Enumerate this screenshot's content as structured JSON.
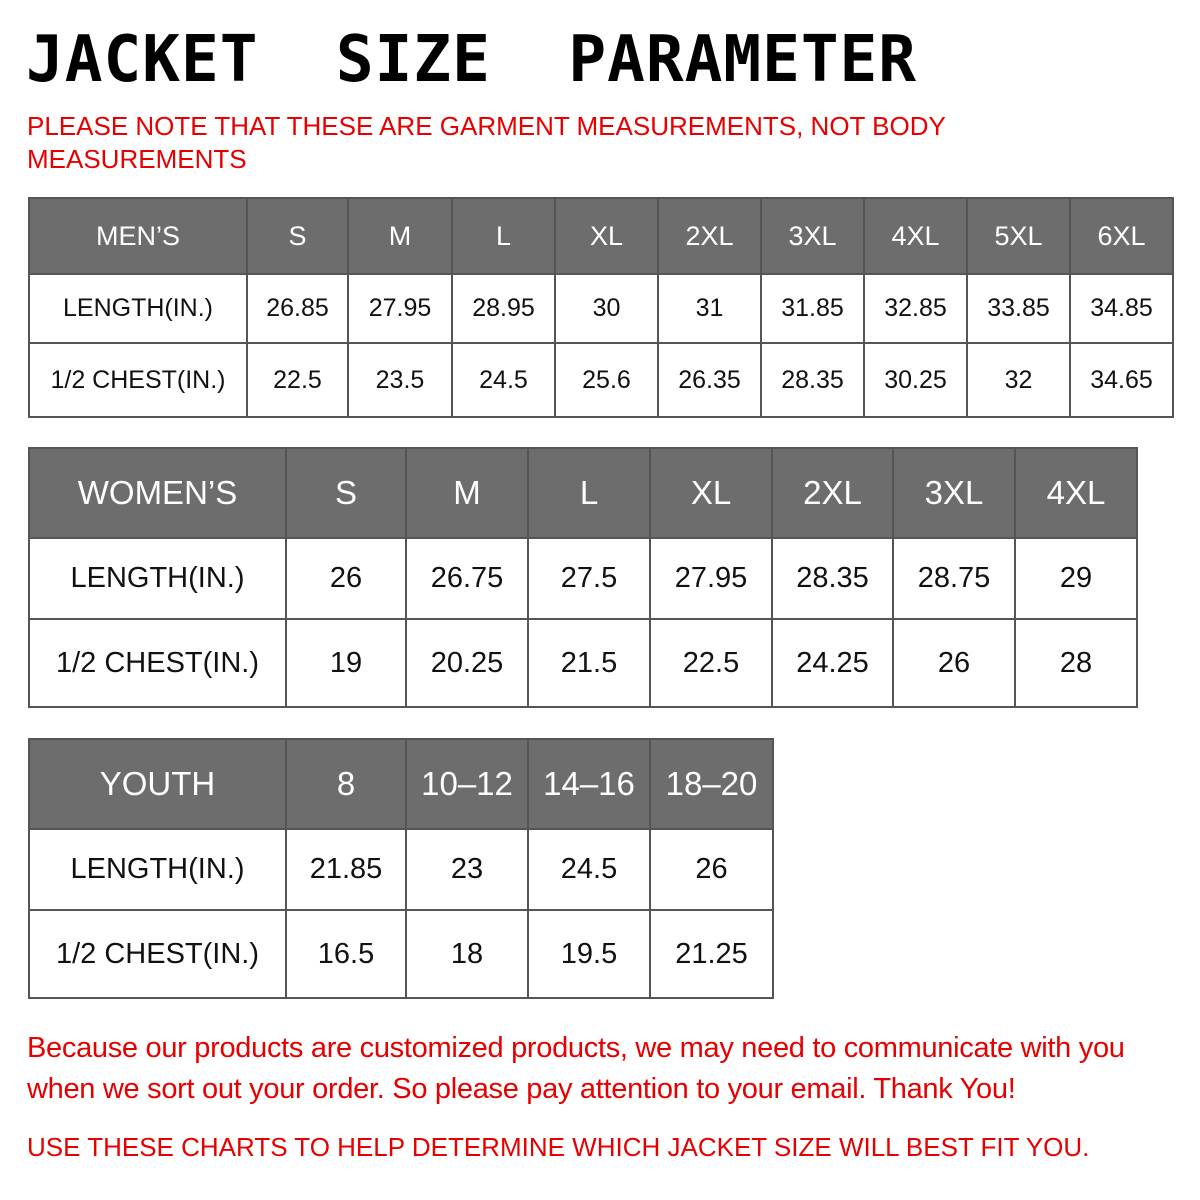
{
  "title": "JACKET  SIZE  PARAMETER",
  "note": "PLEASE NOTE THAT THESE ARE GARMENT MEASUREMENTS, NOT BODY MEASUREMENTS",
  "colors": {
    "header_bg": "#6d6d6d",
    "accent_red": "#e60000"
  },
  "tables": {
    "men": {
      "header": [
        "MEN’S",
        "S",
        "M",
        "L",
        "XL",
        "2XL",
        "3XL",
        "4XL",
        "5XL",
        "6XL"
      ],
      "rows": [
        [
          "LENGTH(IN.)",
          "26.85",
          "27.95",
          "28.95",
          "30",
          "31",
          "31.85",
          "32.85",
          "33.85",
          "34.85"
        ],
        [
          "1/2 CHEST(IN.)",
          "22.5",
          "23.5",
          "24.5",
          "25.6",
          "26.35",
          "28.35",
          "30.25",
          "32",
          "34.65"
        ]
      ]
    },
    "women": {
      "header": [
        "WOMEN’S",
        "S",
        "M",
        "L",
        "XL",
        "2XL",
        "3XL",
        "4XL"
      ],
      "rows": [
        [
          "LENGTH(IN.)",
          "26",
          "26.75",
          "27.5",
          "27.95",
          "28.35",
          "28.75",
          "29"
        ],
        [
          "1/2 CHEST(IN.)",
          "19",
          "20.25",
          "21.5",
          "22.5",
          "24.25",
          "26",
          "28"
        ]
      ]
    },
    "youth": {
      "header": [
        "YOUTH",
        "8",
        "10–12",
        "14–16",
        "18–20"
      ],
      "rows": [
        [
          "LENGTH(IN.)",
          "21.85",
          "23",
          "24.5",
          "26"
        ],
        [
          "1/2 CHEST(IN.)",
          "16.5",
          "18",
          "19.5",
          "21.25"
        ]
      ]
    }
  },
  "footer_message": "Because our products are customized products, we may need to communicate with you when we sort out your order. So please pay attention to your email. Thank You!",
  "usage_note": "USE THESE CHARTS TO HELP DETERMINE WHICH JACKET SIZE WILL BEST FIT YOU."
}
